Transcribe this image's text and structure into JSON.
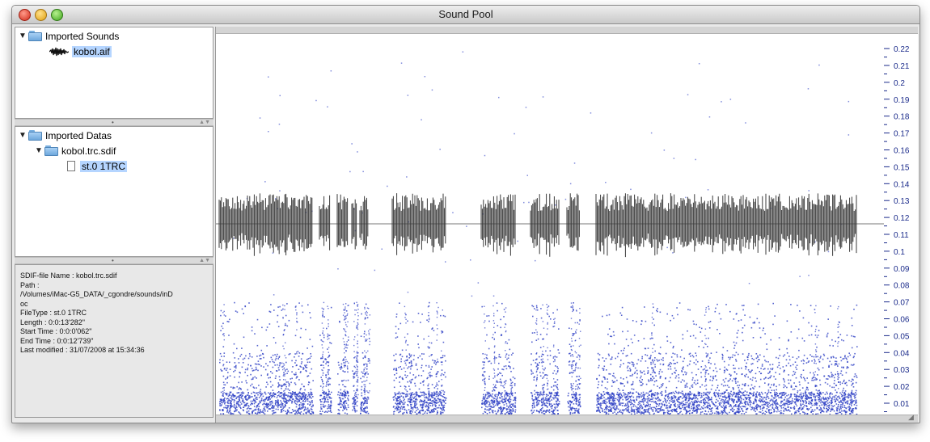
{
  "window": {
    "title": "Sound Pool"
  },
  "sounds": {
    "group_label": "Imported Sounds",
    "file": "kobol.aif"
  },
  "datas": {
    "group_label": "Imported Datas",
    "file": "kobol.trc.sdif",
    "stream": "st.0  1TRC"
  },
  "info": {
    "name": "SDIF-file Name : kobol.trc.sdif",
    "path_label": "Path :",
    "path_value_1": "/Volumes/iMac-G5_DATA/_cgondre/sounds/inD",
    "path_value_2": "oc",
    "filetype": "FileType : st.0 1TRC",
    "length": "Length : 0:0:13'282\"",
    "start": "Start Time : 0:0:0'062\"",
    "end": "End Time : 0:0:12'739\"",
    "modified": "Last modified : 31/07/2008 at 15:34:36"
  },
  "icons": {
    "folder": "folder-icon",
    "document": "document-icon",
    "waveform": "waveform-icon",
    "disclosure": "disclosure-triangle-icon"
  },
  "colors": {
    "selection": "#b5d5ff",
    "points": "#2d3fc4",
    "waveform": "#3a3a3a",
    "axis": "#1a2a8a"
  },
  "chart_data": {
    "type": "scatter",
    "yaxis_ticks": [
      "0.22",
      "0.21",
      "0.2",
      "0.19",
      "0.18",
      "0.17",
      "0.16",
      "0.15",
      "0.14",
      "0.13",
      "0.12",
      "0.11",
      "0.1",
      "0.09",
      "0.08",
      "0.07",
      "0.06",
      "0.05",
      "0.04",
      "0.03",
      "0.02",
      "0.01"
    ],
    "ylim": [
      0,
      0.225
    ],
    "overlay": "waveform"
  }
}
